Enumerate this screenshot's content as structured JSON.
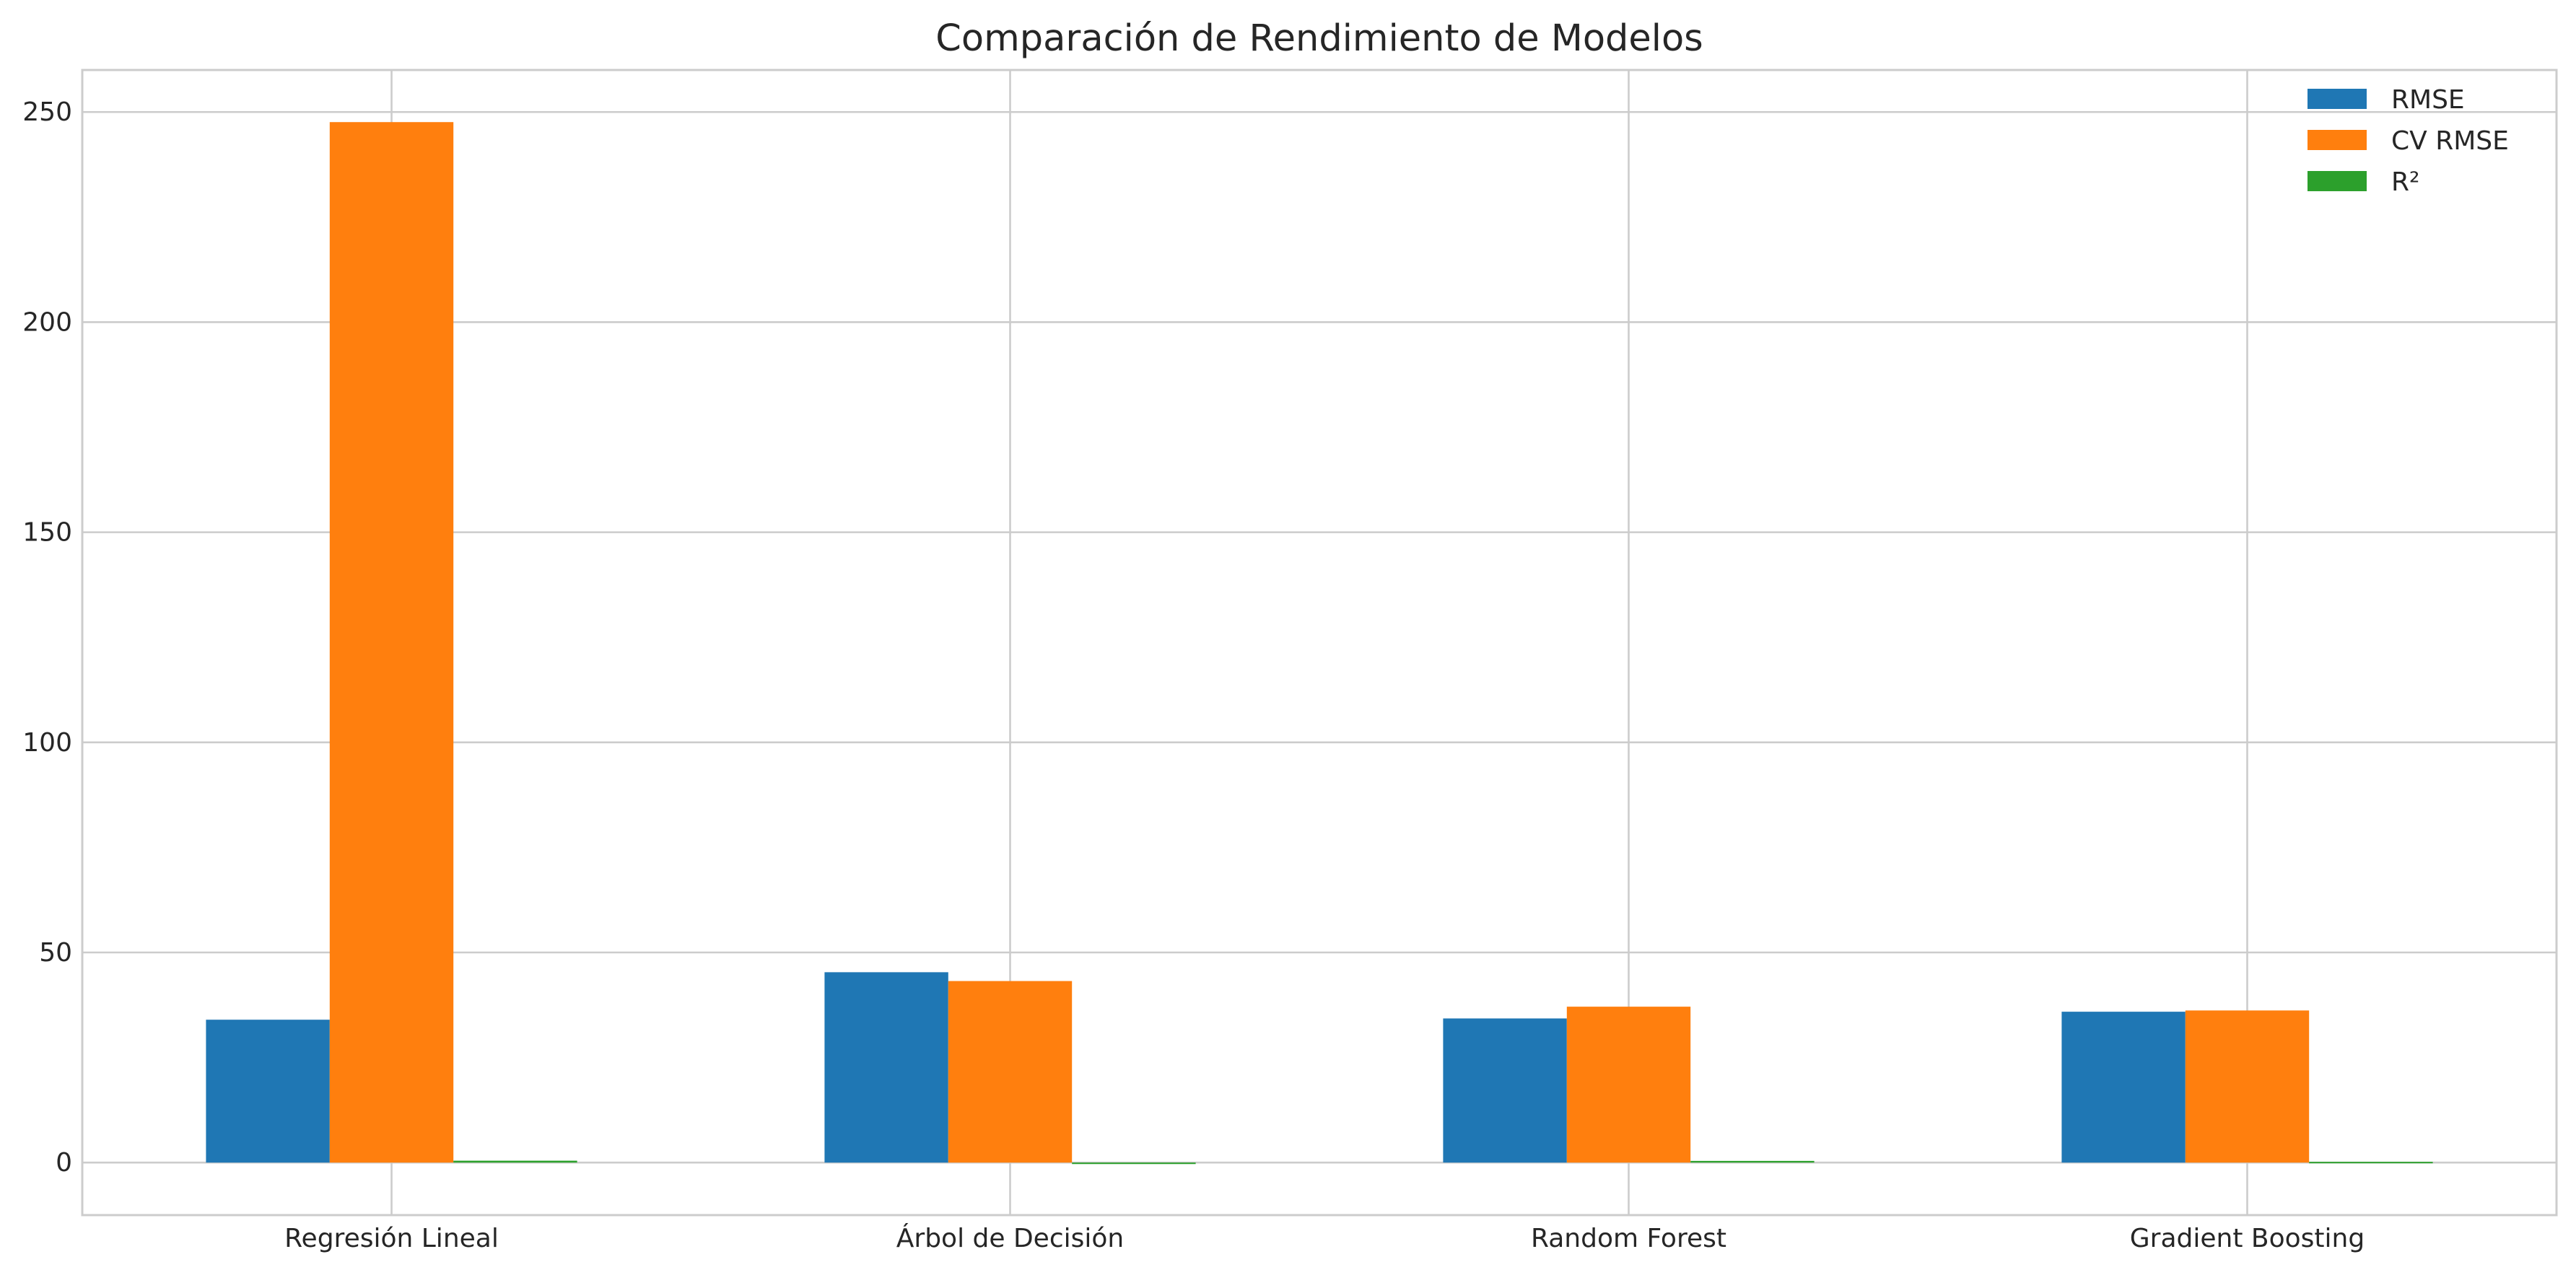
{
  "chart_data": {
    "type": "bar",
    "title": "Comparación de Rendimiento de Modelos",
    "xlabel": "",
    "ylabel": "",
    "categories": [
      "Regresión Lineal",
      "Árbol de Decisión",
      "Random Forest",
      "Gradient Boosting"
    ],
    "series": [
      {
        "name": "RMSE",
        "color": "#1f77b4",
        "values": [
          34.0,
          45.3,
          34.3,
          35.9
        ]
      },
      {
        "name": "CV RMSE",
        "color": "#ff7f0e",
        "values": [
          247.6,
          43.2,
          37.1,
          36.2
        ]
      },
      {
        "name": "R²",
        "color": "#2ca02c",
        "values": [
          0.45,
          -0.35,
          0.4,
          0.3
        ]
      }
    ],
    "ylim": [
      -12.5,
      260
    ],
    "yticks": [
      0,
      50,
      100,
      150,
      200,
      250
    ],
    "grid": true,
    "legend_position": "top-right"
  }
}
